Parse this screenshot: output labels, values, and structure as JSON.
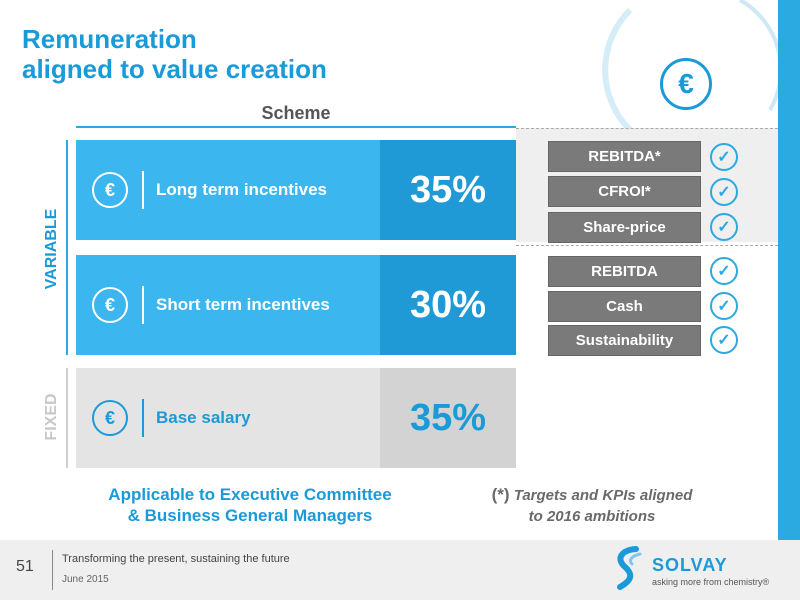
{
  "title_line1": "Remuneration",
  "title_line2": "aligned to value creation",
  "header_icon": "euro-icon",
  "scheme_label": "Scheme",
  "variable_label": "VARIABLE",
  "fixed_label": "FIXED",
  "rows": [
    {
      "icon": "euro-icon",
      "label": "Long term incentives",
      "percent": "35%"
    },
    {
      "icon": "euro-icon",
      "label": "Short term incentives",
      "percent": "30%"
    },
    {
      "icon": "euro-icon",
      "label": "Base salary",
      "percent": "35%"
    }
  ],
  "kpis_long_term": [
    "REBITDA*",
    "CFROI*",
    "Share-price"
  ],
  "kpis_short_term": [
    "REBITDA",
    "Cash",
    "Sustainability"
  ],
  "applicable_line1": "Applicable to Executive Committee",
  "applicable_line2": "& Business General Managers",
  "note_marker": "(*)",
  "note_line1": "Targets and KPIs aligned",
  "note_line2": "to 2016 ambitions",
  "footer": {
    "page_number": "51",
    "tagline": "Transforming the present, sustaining the future",
    "date": "June 2015",
    "logo_name": "SOLVAY",
    "logo_tagline": "asking more from chemistry®"
  },
  "colors": {
    "accent": "#1a9ad8",
    "light_blue": "#3cb6ee",
    "grey_kpi": "#7a7a7a"
  }
}
